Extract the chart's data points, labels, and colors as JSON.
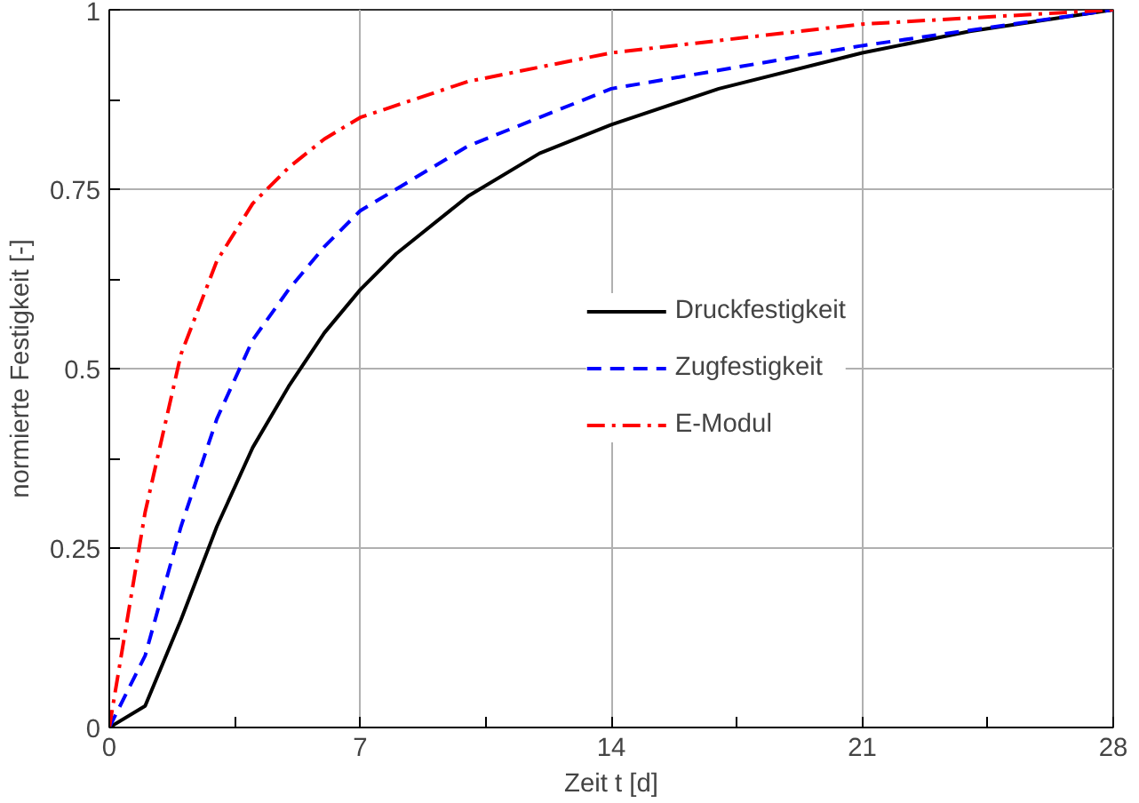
{
  "chart_data": {
    "type": "line",
    "xlabel": "Zeit t [d]",
    "ylabel": "normierte Festigkeit [-]",
    "xlim": [
      0,
      28
    ],
    "ylim": [
      0,
      1
    ],
    "xticks": [
      0,
      {
        "value": 3.5,
        "label": null
      },
      7,
      {
        "value": 10.5,
        "label": null
      },
      14,
      {
        "value": 17.5,
        "label": null
      },
      21,
      {
        "value": 24.5,
        "label": null
      },
      28
    ],
    "yticks": [
      0,
      {
        "value": 0.125,
        "label": null
      },
      0.25,
      {
        "value": 0.375,
        "label": null
      },
      0.5,
      {
        "value": 0.625,
        "label": null
      },
      0.75,
      {
        "value": 0.875,
        "label": null
      },
      1
    ],
    "grid": true,
    "legend": "center right",
    "marker": "none",
    "series": [
      {
        "name": "Druckfestigkeit",
        "color": "#000000",
        "line_style": "solid",
        "x": [
          0,
          1,
          2,
          3,
          4,
          5,
          6,
          7,
          8,
          10,
          12,
          14,
          17,
          21,
          24,
          28
        ],
        "values": [
          0,
          0.03,
          0.15,
          0.28,
          0.39,
          0.475,
          0.55,
          0.61,
          0.66,
          0.74,
          0.8,
          0.84,
          0.89,
          0.94,
          0.97,
          1
        ]
      },
      {
        "name": "Zugfestigkeit",
        "color": "#0000ff",
        "line_style": "dashed",
        "x": [
          0,
          1,
          2,
          3,
          4,
          5,
          6,
          7,
          10,
          14,
          21,
          28
        ],
        "values": [
          0,
          0.1,
          0.28,
          0.43,
          0.54,
          0.61,
          0.67,
          0.72,
          0.81,
          0.89,
          0.95,
          1
        ]
      },
      {
        "name": "E-Modul",
        "color": "#ff0000",
        "line_style": "dashdot",
        "x": [
          0,
          1,
          2,
          3,
          4,
          5,
          6,
          7,
          10,
          14,
          21,
          28
        ],
        "values": [
          0,
          0.3,
          0.52,
          0.65,
          0.73,
          0.78,
          0.82,
          0.85,
          0.9,
          0.94,
          0.98,
          1
        ]
      }
    ]
  }
}
